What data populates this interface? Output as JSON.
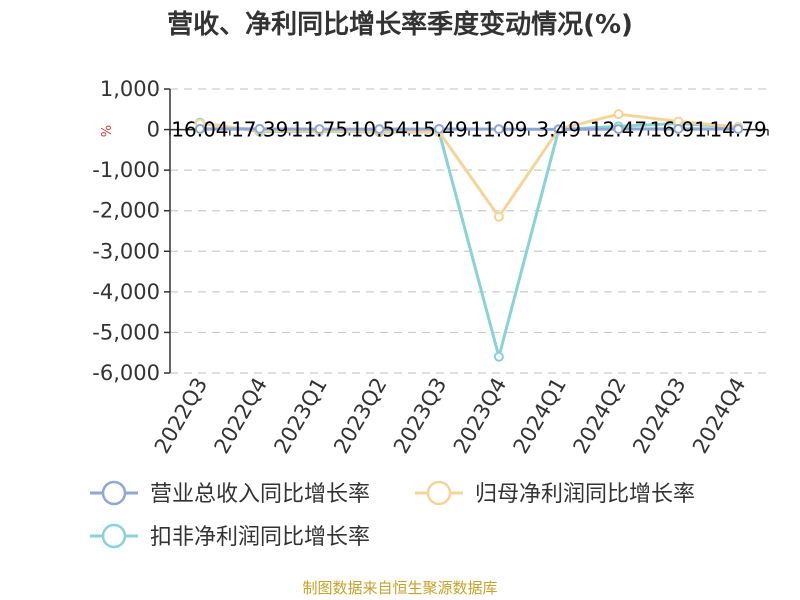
{
  "chart_data": {
    "type": "line",
    "title": "营收、净利同比增长率季度变动情况(%)",
    "unit_mark": "%",
    "categories": [
      "2022Q3",
      "2022Q4",
      "2023Q1",
      "2023Q2",
      "2023Q3",
      "2023Q4",
      "2024Q1",
      "2024Q2",
      "2024Q3",
      "2024Q4"
    ],
    "ylim": [
      -6000,
      1000
    ],
    "yticks": [
      1000,
      0,
      -1000,
      -2000,
      -3000,
      -4000,
      -5000,
      -6000
    ],
    "ytick_labels": [
      "1,000",
      "0",
      "-1,000",
      "-2,000",
      "-3,000",
      "-4,000",
      "-5,000",
      "-6,000"
    ],
    "grid": true,
    "legend_position": "bottom",
    "series": [
      {
        "name": "营业总收入同比增长率",
        "color": "#8fa7d6",
        "values": [
          16.04,
          17.39,
          11.75,
          10.54,
          15.49,
          11.09,
          3.49,
          12.47,
          16.91,
          14.79
        ],
        "data_labels": [
          "16.04",
          "17.39",
          "11.75",
          "10.54",
          "15.49",
          "11.09",
          "3.49",
          "12.47",
          "16.91",
          "14.79"
        ]
      },
      {
        "name": "归母净利润同比增长率",
        "color": "#f5d49a",
        "values": [
          150,
          -30,
          -30,
          -40,
          -60,
          -2150,
          10,
          380,
          200,
          60
        ]
      },
      {
        "name": "扣非净利润同比增长率",
        "color": "#87d3d6",
        "values": [
          170,
          -50,
          -40,
          -60,
          -60,
          -5600,
          0,
          80,
          150,
          60
        ]
      }
    ]
  },
  "source_text": "制图数据来自恒生聚源数据库"
}
